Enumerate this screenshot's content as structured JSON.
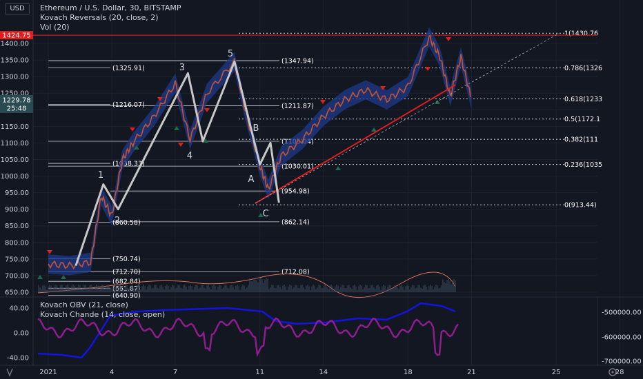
{
  "header": {
    "currency": "USD",
    "symbol_line": "Ethereum / U.S. Dollar, 30, BITSTAMP",
    "indicator1": "Kovach Reversals (20, close, 2)",
    "indicator2": "Vol (20)",
    "lower_indicator1": "Kovach OBV (21, close)",
    "lower_indicator2": "Kovach Chande (14, close, open)"
  },
  "price_axis": {
    "ticks": [
      "1400.00",
      "1350.00",
      "1300.00",
      "1250.00",
      "1200.00",
      "1150.00",
      "1100.00",
      "1050.00",
      "1000.00",
      "950.00",
      "900.00",
      "850.00",
      "800.00",
      "750.00",
      "700.00",
      "650.00"
    ],
    "current_price": "1229.78",
    "countdown": "25:48",
    "red_line_badge": "1424.75"
  },
  "time_axis": {
    "ticks": [
      "2021",
      "4",
      "7",
      "11",
      "14",
      "18",
      "21",
      "25",
      "28"
    ]
  },
  "lower_left_axis": {
    "ticks": [
      "40.00",
      "0.00",
      "-40.00"
    ]
  },
  "lower_right_axis": {
    "ticks": [
      "-500000.00",
      "-600000.00",
      "-700000.00"
    ]
  },
  "level_labels": [
    "(1347.94)",
    "(1325.91)",
    "(1216.07)",
    "(1211.87)",
    "(1105.04)",
    "(1038.33)",
    "(1030.01)",
    "(954.98)",
    "(860.58)",
    "(862.14)",
    "(750.74)",
    "(712.70)",
    "(712.08)",
    "(682.84)",
    "(661.87)",
    "(640.90)"
  ],
  "fib_labels": [
    "1(1430.76",
    "0.786(1326",
    "0.618(1233",
    "0.5(1172.1",
    "0.382(111",
    "0.236(1035",
    "0(913.44)"
  ],
  "wave_labels": [
    "1",
    "2",
    "3",
    "4",
    "5",
    "A",
    "B",
    "C"
  ],
  "chart_data": {
    "type": "line",
    "price_series": {
      "x": [
        "Jan 1",
        "Jan 2",
        "Jan 3",
        "Jan 3.5",
        "Jan 4",
        "Jan 4.5",
        "Jan 5",
        "Jan 6",
        "Jan 7",
        "Jan 7.7",
        "Jan 8.5",
        "Jan 9.8",
        "Jan 10.3",
        "Jan 11",
        "Jan 11.4",
        "Jan 12",
        "Jan 13",
        "Jan 14",
        "Jan 15",
        "Jan 16",
        "Jan 17",
        "Jan 18",
        "Jan 19",
        "Jan 19.5",
        "Jan 20",
        "Jan 20.5",
        "Jan 21"
      ],
      "values": [
        735,
        730,
        740,
        940,
        880,
        1050,
        1100,
        1180,
        1280,
        1110,
        1250,
        1345,
        1200,
        1030,
        960,
        1060,
        1110,
        1180,
        1230,
        1260,
        1230,
        1270,
        1420,
        1360,
        1240,
        1360,
        1230
      ]
    },
    "elliott_path": [
      {
        "x": "Jan 2.3",
        "y": 730
      },
      {
        "x": "Jan 3.6",
        "y": 975
      },
      {
        "x": "Jan 4.3",
        "y": 900
      },
      {
        "x": "Jan 7.6",
        "y": 1310
      },
      {
        "x": "Jan 8.3",
        "y": 1105
      },
      {
        "x": "Jan 9.8",
        "y": 1345
      },
      {
        "x": "Jan 11",
        "y": 1035
      },
      {
        "x": "Jan 11.5",
        "y": 1100
      },
      {
        "x": "Jan 11.9",
        "y": 920
      }
    ],
    "horizontal_levels": [
      1347.94,
      1325.91,
      1216.07,
      1211.87,
      1105.04,
      1038.33,
      1030.01,
      954.98,
      860.58,
      862.14,
      750.74,
      712.7,
      712.08,
      682.84,
      661.87,
      640.9
    ],
    "fib_levels": [
      {
        "ratio": "1",
        "value": 1430.76
      },
      {
        "ratio": "0.786",
        "value": 1326
      },
      {
        "ratio": "0.618",
        "value": 1233
      },
      {
        "ratio": "0.5",
        "value": 1172.1
      },
      {
        "ratio": "0.382",
        "value": 1111
      },
      {
        "ratio": "0.236",
        "value": 1035
      },
      {
        "ratio": "0",
        "value": 913.44
      }
    ],
    "red_horizontal": 1424.75,
    "ylim": [
      630,
      1460
    ],
    "colors": {
      "background": "#131722",
      "price": "#e53935",
      "band": "#1e3a8a",
      "wave": "#c8c8c8",
      "obv": "#1414e0",
      "chande": "#8e1d8e",
      "trend": "#e01e1e"
    }
  }
}
